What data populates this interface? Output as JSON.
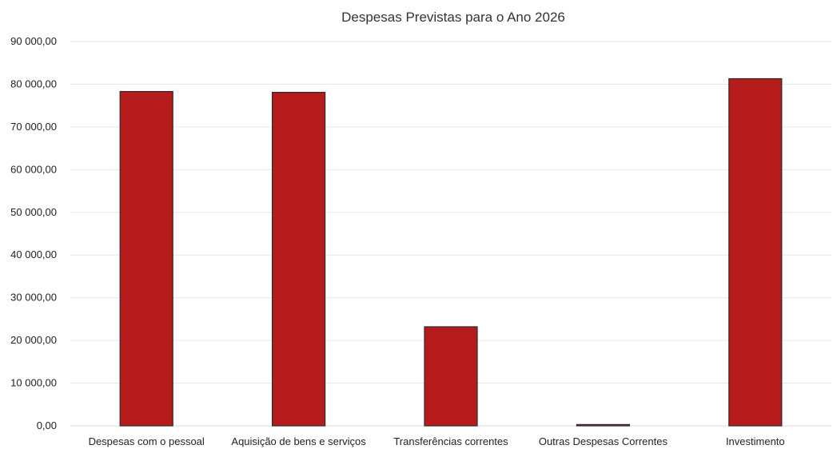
{
  "chart_data": {
    "type": "bar",
    "title": "Despesas Previstas para o Ano 2026",
    "xlabel": "",
    "ylabel": "",
    "categories": [
      "Despesas com o pessoal",
      "Aquisição de bens e serviços",
      "Transferências correntes",
      "Outras Despesas Correntes",
      "Investimento"
    ],
    "values": [
      78300,
      78100,
      23200,
      300,
      81300
    ],
    "ylim": [
      0,
      90000
    ],
    "yticks": [
      0,
      10000,
      20000,
      30000,
      40000,
      50000,
      60000,
      70000,
      80000,
      90000
    ],
    "ytick_labels": [
      "0,00",
      "10 000,00",
      "20 000,00",
      "30 000,00",
      "40 000,00",
      "50 000,00",
      "60 000,00",
      "70 000,00",
      "80 000,00",
      "90 000,00"
    ],
    "grid": true,
    "legend": "none",
    "colors": {
      "bar": "#b71c1c"
    }
  }
}
